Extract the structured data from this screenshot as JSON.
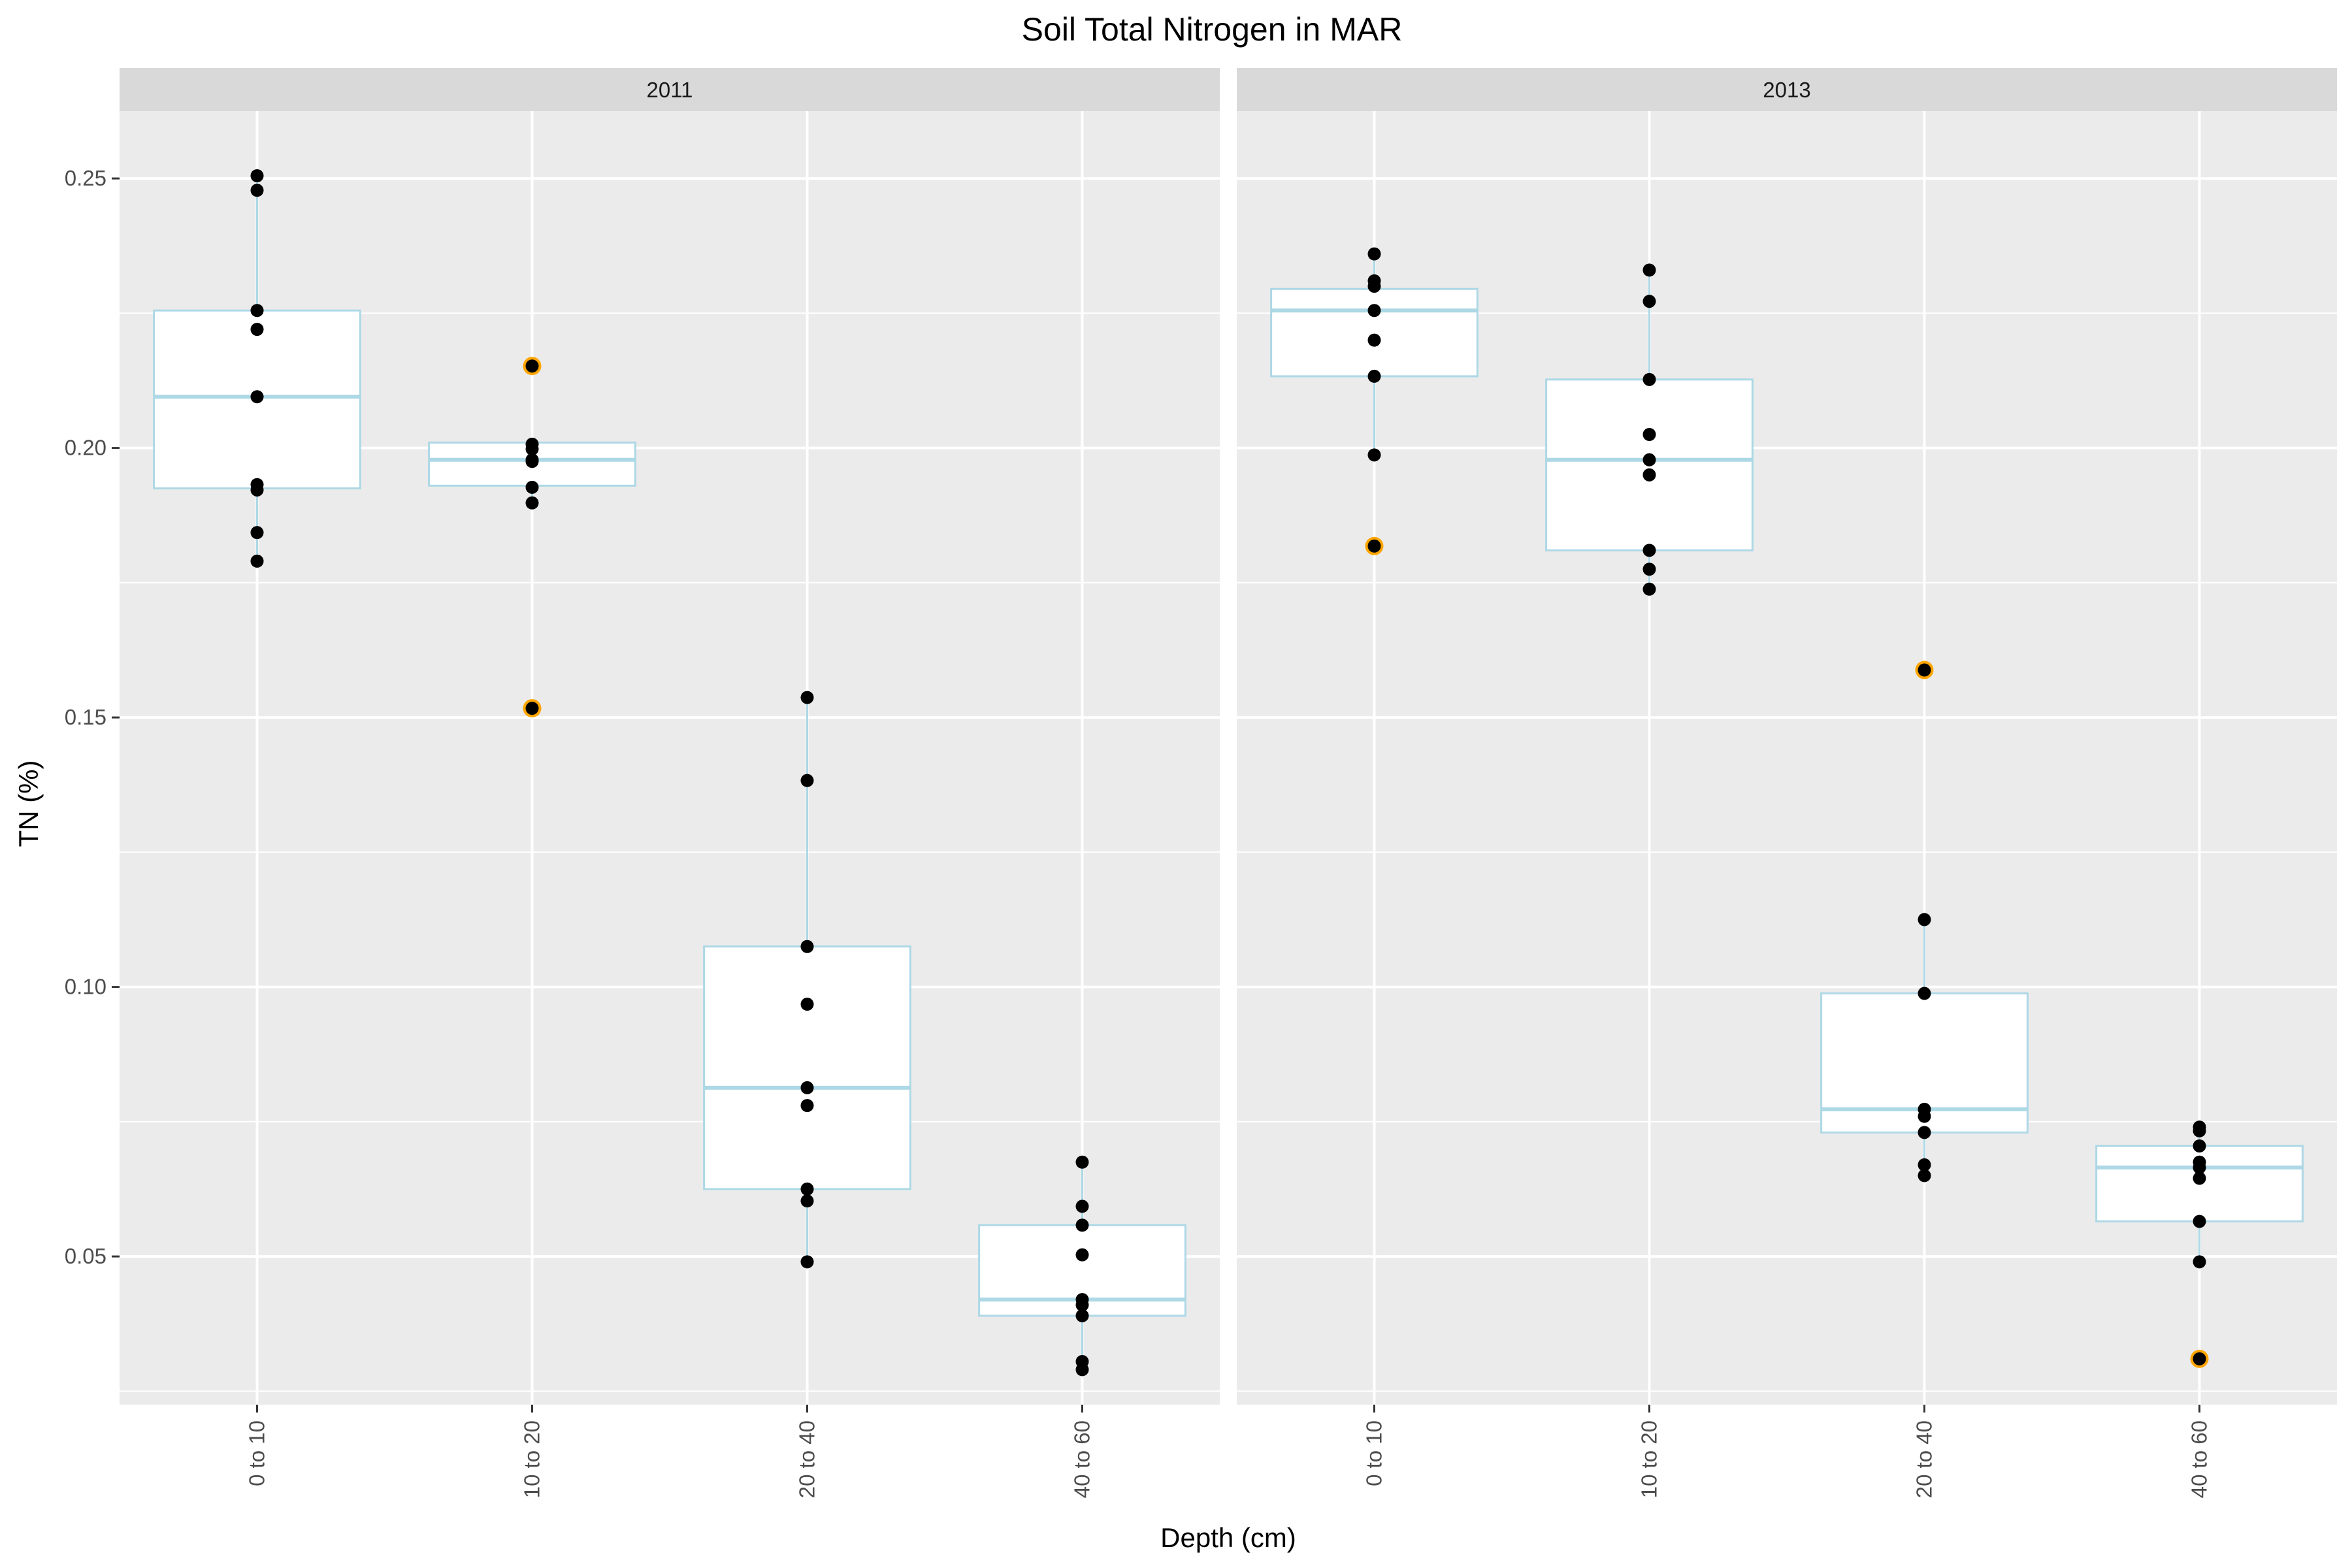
{
  "chart_data": {
    "type": "box",
    "title": "Soil Total Nitrogen in MAR",
    "xlabel": "Depth (cm)",
    "ylabel": "TN (%)",
    "categories": [
      "0 to 10",
      "10 to 20",
      "20 to 40",
      "40 to 60"
    ],
    "y_ticks": [
      "0.05",
      "0.10",
      "0.15",
      "0.20",
      "0.25"
    ],
    "y_tick_values": [
      0.05,
      0.1,
      0.15,
      0.2,
      0.25
    ],
    "ylim": [
      0.0225,
      0.2625
    ],
    "grid": true,
    "box_color": "#add8e6",
    "point_color": "#000000",
    "outlier_color": "#ffa500",
    "panel_background": "#ebebeb",
    "strip_background": "#d9d9d9",
    "panels": [
      {
        "label": "2011",
        "boxes": [
          {
            "category": "0 to 10",
            "q1": 0.1925,
            "median": 0.2095,
            "q3": 0.2255,
            "whisker_low": 0.179,
            "whisker_high": 0.2505,
            "points": [
              0.2505,
              0.2478,
              0.2255,
              0.222,
              0.2095,
              0.1932,
              0.1922,
              0.1843,
              0.179
            ],
            "outliers": []
          },
          {
            "category": "10 to 20",
            "q1": 0.193,
            "median": 0.1978,
            "q3": 0.201,
            "whisker_low": 0.1898,
            "whisker_high": 0.201,
            "points": [
              0.2152,
              0.2007,
              0.1998,
              0.1978,
              0.1975,
              0.1927,
              0.1898,
              0.1517
            ],
            "outliers": [
              0.2152,
              0.1517
            ]
          },
          {
            "category": "20 to 40",
            "q1": 0.0625,
            "median": 0.0813,
            "q3": 0.1075,
            "whisker_low": 0.049,
            "whisker_high": 0.1537,
            "points": [
              0.1537,
              0.1383,
              0.1075,
              0.0968,
              0.0813,
              0.078,
              0.0625,
              0.0603,
              0.049
            ],
            "outliers": []
          },
          {
            "category": "40 to 60",
            "q1": 0.039,
            "median": 0.042,
            "q3": 0.0558,
            "whisker_low": 0.029,
            "whisker_high": 0.0675,
            "points": [
              0.0675,
              0.0593,
              0.0558,
              0.0503,
              0.042,
              0.041,
              0.039,
              0.0305,
              0.029
            ],
            "outliers": []
          }
        ]
      },
      {
        "label": "2013",
        "boxes": [
          {
            "category": "0 to 10",
            "q1": 0.2133,
            "median": 0.2255,
            "q3": 0.2295,
            "whisker_low": 0.1987,
            "whisker_high": 0.236,
            "points": [
              0.236,
              0.231,
              0.23,
              0.2255,
              0.22,
              0.2133,
              0.1987,
              0.1818
            ],
            "outliers": [
              0.1818
            ]
          },
          {
            "category": "10 to 20",
            "q1": 0.181,
            "median": 0.1978,
            "q3": 0.2127,
            "whisker_low": 0.1738,
            "whisker_high": 0.233,
            "points": [
              0.233,
              0.2272,
              0.2127,
              0.2025,
              0.1978,
              0.195,
              0.181,
              0.1775,
              0.1738
            ],
            "outliers": []
          },
          {
            "category": "20 to 40",
            "q1": 0.073,
            "median": 0.0773,
            "q3": 0.0988,
            "whisker_low": 0.065,
            "whisker_high": 0.1125,
            "points": [
              0.1588,
              0.1125,
              0.0988,
              0.0773,
              0.076,
              0.073,
              0.067,
              0.065
            ],
            "outliers": [
              0.1588
            ]
          },
          {
            "category": "40 to 60",
            "q1": 0.0565,
            "median": 0.0665,
            "q3": 0.0705,
            "whisker_low": 0.049,
            "whisker_high": 0.074,
            "points": [
              0.074,
              0.0733,
              0.0705,
              0.0675,
              0.0665,
              0.0645,
              0.0565,
              0.049,
              0.031
            ],
            "outliers": [
              0.031
            ]
          }
        ]
      }
    ]
  }
}
